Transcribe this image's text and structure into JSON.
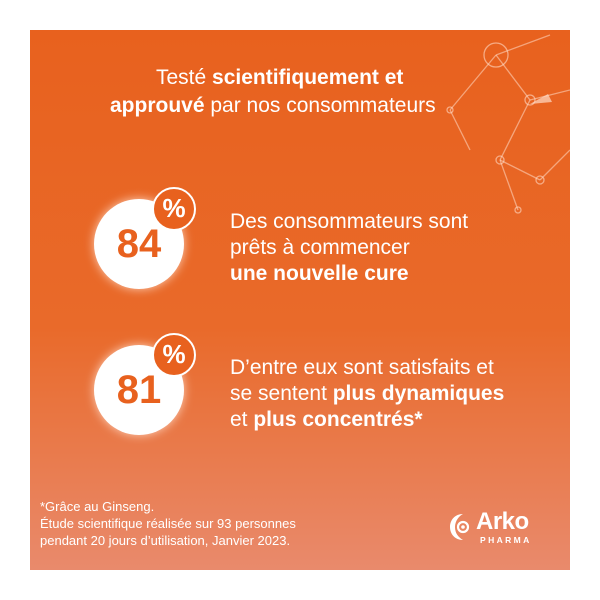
{
  "headline": {
    "line1_prefix": "Testé ",
    "line1_bold": "scientifiquement et",
    "line2_bold": "approuvé",
    "line2_rest": " par nos consommateurs"
  },
  "stats": [
    {
      "value": "84",
      "percent_symbol": "%",
      "line1": "Des consommateurs sont",
      "line2": "prêts à commencer",
      "line3_bold": "une nouvelle cure"
    },
    {
      "value": "81",
      "percent_symbol": "%",
      "line1": "D’entre eux sont satisfaits et",
      "line2_prefix": "se sentent ",
      "line2_bold": "plus dynamiques",
      "line3_prefix": "et ",
      "line3_bold": "plus concentrés*"
    }
  ],
  "footnote": {
    "line1": "*Grâce au Ginseng.",
    "line2": "Étude scientifique réalisée sur 93 personnes",
    "line3": "pendant 20 jours d’utilisation, Janvier 2023."
  },
  "brand": {
    "name": "Arko",
    "sub": "PHARMA"
  },
  "colors": {
    "accent": "#e8611e",
    "text": "#ffffff"
  }
}
